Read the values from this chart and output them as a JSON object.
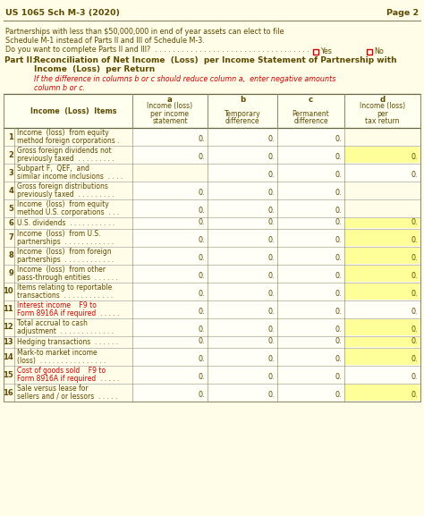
{
  "bg_color": "#fffce8",
  "header_text": "US 1065 Sch M-3 (2020)",
  "page_text": "Page 2",
  "notice_lines": [
    "Partnerships with less than $50,000,000 in end of year assets can elect to file",
    "Schedule M-1 instead of Parts II and III of Schedule M-3.",
    "Do you want to complete Parts II and III?  . . . . . . . . . . . . . . . . . . . . . . . . . . . . . . . . . . ."
  ],
  "yes_no_label": [
    "Yes",
    "No"
  ],
  "part_label": "Part II:",
  "part_title_line1": "Reconciliation of Net Income  (Loss)  per Income Statement of Partnership with",
  "part_title_line2": "Income  (Loss)  per Return",
  "part_note_line1": "If the difference in columns b or c should reduce column a,  enter negative amounts",
  "part_note_line2": "column b or c.",
  "col_headers": [
    [
      "a",
      "Income (loss)",
      "per income",
      "statement"
    ],
    [
      "b",
      "",
      "Temporary",
      "difference"
    ],
    [
      "c",
      "",
      "Permanent",
      "difference"
    ],
    [
      "d",
      "Income (loss)",
      "per",
      "tax return"
    ]
  ],
  "row_label": "Income  (Loss)  Items",
  "rows": [
    {
      "num": "1",
      "label": [
        "Income  (loss)  from equity",
        "method foreign corporations ."
      ],
      "a": true,
      "b": true,
      "c": true,
      "d": false,
      "d_yellow": false
    },
    {
      "num": "2",
      "label": [
        "Gross foreign dividends not",
        "previously taxed  . . . . . . . . ."
      ],
      "a": true,
      "b": true,
      "c": true,
      "d": true,
      "d_yellow": true
    },
    {
      "num": "3",
      "label": [
        "Subpart F,  QEF,  and",
        "similar income inclusions  . . . ."
      ],
      "a": false,
      "b": true,
      "c": true,
      "d": true,
      "d_yellow": false
    },
    {
      "num": "4",
      "label": [
        "Gross foreign distributions",
        "previously taxed  . . . . . . . . ."
      ],
      "a": true,
      "b": true,
      "c": true,
      "d": false,
      "d_yellow": false
    },
    {
      "num": "5",
      "label": [
        "Income  (loss)  from equity",
        "method U.S. corporations  . . ."
      ],
      "a": true,
      "b": true,
      "c": true,
      "d": false,
      "d_yellow": false
    },
    {
      "num": "6",
      "label": [
        "U.S. dividends  . . . . . . . . . . ."
      ],
      "a": true,
      "b": true,
      "c": true,
      "d": true,
      "d_yellow": true
    },
    {
      "num": "7",
      "label": [
        "Income  (loss)  from U.S.",
        "partnerships  . . . . . . . . . . . ."
      ],
      "a": true,
      "b": true,
      "c": true,
      "d": true,
      "d_yellow": true
    },
    {
      "num": "8",
      "label": [
        "Income  (loss)  from foreign",
        "partnerships  . . . . . . . . . . . ."
      ],
      "a": true,
      "b": true,
      "c": true,
      "d": true,
      "d_yellow": true
    },
    {
      "num": "9",
      "label": [
        "Income  (loss)  from other",
        "pass-through entities  . . . . . ."
      ],
      "a": true,
      "b": true,
      "c": true,
      "d": true,
      "d_yellow": true
    },
    {
      "num": "10",
      "label": [
        "Items relating to reportable",
        "transactions  . . . . . . . . . . . ."
      ],
      "a": true,
      "b": true,
      "c": true,
      "d": true,
      "d_yellow": true
    },
    {
      "num": "11",
      "label": [
        "Interest income    F9 to",
        "Form 8916A if required  . . . . ."
      ],
      "a": true,
      "b": true,
      "c": true,
      "d": true,
      "d_yellow": false,
      "label_red_part": [
        0,
        1
      ]
    },
    {
      "num": "12",
      "label": [
        "Total accrual to cash",
        "adjustment  . . . . . . . . . . . . ."
      ],
      "a": true,
      "b": true,
      "c": true,
      "d": true,
      "d_yellow": true
    },
    {
      "num": "13",
      "label": [
        "Hedging transactions  . . . . . ."
      ],
      "a": true,
      "b": true,
      "c": true,
      "d": true,
      "d_yellow": true
    },
    {
      "num": "14",
      "label": [
        "Mark-to market income",
        "(loss)  . . . . . . . . . . . . . . . ."
      ],
      "a": true,
      "b": true,
      "c": true,
      "d": true,
      "d_yellow": true
    },
    {
      "num": "15",
      "label": [
        "Cost of goods sold    F9 to",
        "Form 8916A if required  . . . . ."
      ],
      "a": true,
      "b": true,
      "c": true,
      "d": true,
      "d_yellow": false,
      "label_red_part": [
        0,
        1
      ]
    },
    {
      "num": "16",
      "label": [
        "Sale versus lease for",
        "sellers and / or lessors  . . . . ."
      ],
      "a": true,
      "b": true,
      "c": true,
      "d": true,
      "d_yellow": true
    }
  ],
  "text_color": "#5c4a00",
  "red_color": "#cc0000",
  "cell_bg": "#fffff8",
  "yellow_cell": "#ffff99"
}
